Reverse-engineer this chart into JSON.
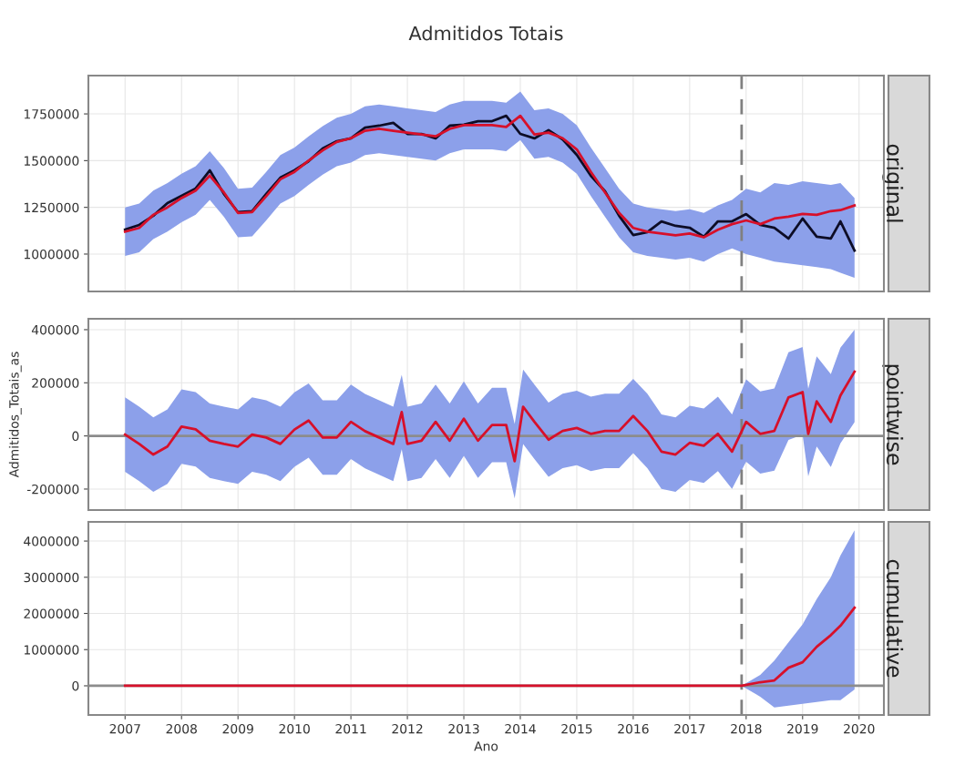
{
  "chart_data": [
    {
      "type": "line",
      "title": "Admitidos Totais",
      "subtitle": "original",
      "xlim": [
        2006.35,
        2020.44
      ],
      "xticks": [
        2007,
        2008,
        2009,
        2010,
        2011,
        2012,
        2013,
        2014,
        2015,
        2016,
        2017,
        2018,
        2019,
        2020
      ],
      "ylim": [
        800000,
        1955000
      ],
      "yticks": [
        1000000,
        1250000,
        1500000,
        1750000
      ],
      "grid": true,
      "tick_labels": "y",
      "line_style": "solid",
      "x": [
        2007.0,
        2007.25,
        2007.5,
        2007.75,
        2008.0,
        2008.25,
        2008.5,
        2008.75,
        2009.0,
        2009.25,
        2009.5,
        2009.75,
        2010.0,
        2010.25,
        2010.5,
        2010.75,
        2011.0,
        2011.25,
        2011.5,
        2011.75,
        2012.0,
        2012.25,
        2012.5,
        2012.75,
        2013.0,
        2013.25,
        2013.5,
        2013.75,
        2014.0,
        2014.25,
        2014.5,
        2014.75,
        2015.0,
        2015.25,
        2015.5,
        2015.75,
        2016.0,
        2016.25,
        2016.5,
        2016.75,
        2017.0,
        2017.25,
        2017.5,
        2017.75,
        2018.0,
        2018.25,
        2018.5,
        2018.75,
        2019.0,
        2019.25,
        2019.5,
        2019.67,
        2019.92
      ],
      "series": [
        {
          "color": "#0d0d26",
          "values": [
            1131000,
            1156000,
            1205000,
            1273000,
            1312000,
            1351000,
            1448000,
            1322000,
            1224000,
            1229000,
            1322000,
            1409000,
            1448000,
            1497000,
            1565000,
            1604000,
            1619000,
            1677000,
            1687000,
            1702000,
            1643000,
            1643000,
            1619000,
            1687000,
            1692000,
            1711000,
            1711000,
            1740000,
            1643000,
            1619000,
            1663000,
            1614000,
            1531000,
            1419000,
            1336000,
            1205000,
            1102000,
            1117000,
            1175000,
            1151000,
            1141000,
            1093000,
            1175000,
            1175000,
            1214000,
            1156000,
            1141000,
            1083000,
            1190000,
            1093000,
            1083000,
            1175000,
            1019000
          ]
        },
        {
          "color": "#d7102a",
          "values": [
            1120000,
            1140000,
            1210000,
            1250000,
            1300000,
            1340000,
            1420000,
            1330000,
            1220000,
            1225000,
            1310000,
            1400000,
            1440000,
            1500000,
            1555000,
            1600000,
            1620000,
            1660000,
            1670000,
            1660000,
            1650000,
            1640000,
            1630000,
            1670000,
            1690000,
            1690000,
            1690000,
            1680000,
            1740000,
            1640000,
            1650000,
            1620000,
            1560000,
            1440000,
            1330000,
            1220000,
            1140000,
            1120000,
            1110000,
            1100000,
            1110000,
            1090000,
            1130000,
            1160000,
            1180000,
            1160000,
            1190000,
            1200000,
            1215000,
            1210000,
            1230000,
            1235000,
            1260000
          ],
          "lower": [
            990000,
            1010000,
            1080000,
            1120000,
            1170000,
            1210000,
            1290000,
            1200000,
            1090000,
            1095000,
            1180000,
            1270000,
            1310000,
            1370000,
            1425000,
            1470000,
            1490000,
            1530000,
            1540000,
            1530000,
            1520000,
            1510000,
            1500000,
            1540000,
            1560000,
            1560000,
            1560000,
            1550000,
            1610000,
            1510000,
            1520000,
            1490000,
            1430000,
            1310000,
            1200000,
            1090000,
            1010000,
            990000,
            980000,
            970000,
            980000,
            960000,
            1000000,
            1030000,
            1000000,
            980000,
            960000,
            950000,
            940000,
            930000,
            920000,
            900000,
            873000
          ],
          "upper": [
            1250000,
            1270000,
            1340000,
            1380000,
            1430000,
            1470000,
            1550000,
            1460000,
            1350000,
            1355000,
            1440000,
            1530000,
            1570000,
            1630000,
            1685000,
            1730000,
            1750000,
            1790000,
            1800000,
            1790000,
            1780000,
            1770000,
            1760000,
            1800000,
            1820000,
            1820000,
            1820000,
            1810000,
            1870000,
            1770000,
            1780000,
            1750000,
            1690000,
            1570000,
            1460000,
            1350000,
            1270000,
            1250000,
            1240000,
            1230000,
            1240000,
            1220000,
            1260000,
            1290000,
            1350000,
            1330000,
            1380000,
            1370000,
            1390000,
            1380000,
            1370000,
            1380000,
            1300000
          ]
        }
      ],
      "ref_lines": [
        {
          "axis": "x",
          "value": 2017.92,
          "color": "#808080",
          "line_style": "dashed"
        }
      ]
    },
    {
      "type": "line",
      "subtitle": "pointwise",
      "ylabel": "Admitidos_Totais_as",
      "xlim": [
        2006.35,
        2020.44
      ],
      "xticks": [
        2007,
        2008,
        2009,
        2010,
        2011,
        2012,
        2013,
        2014,
        2015,
        2016,
        2017,
        2018,
        2019,
        2020
      ],
      "ylim": [
        -279000,
        441000
      ],
      "yticks": [
        {
          "value": -200000,
          "label": "-200000"
        },
        0,
        200000,
        400000
      ],
      "grid": true,
      "tick_labels": "y",
      "line_style": "solid",
      "x": [
        2007.0,
        2007.25,
        2007.5,
        2007.75,
        2008.0,
        2008.25,
        2008.5,
        2008.75,
        2009.0,
        2009.25,
        2009.5,
        2009.75,
        2010.0,
        2010.25,
        2010.5,
        2010.75,
        2011.0,
        2011.25,
        2011.5,
        2011.75,
        2011.9,
        2012.0,
        2012.25,
        2012.5,
        2012.75,
        2013.0,
        2013.25,
        2013.5,
        2013.75,
        2013.9,
        2014.05,
        2014.25,
        2014.5,
        2014.75,
        2015.0,
        2015.25,
        2015.5,
        2015.75,
        2016.0,
        2016.25,
        2016.5,
        2016.75,
        2017.0,
        2017.25,
        2017.5,
        2017.75,
        2018.0,
        2018.25,
        2018.5,
        2018.75,
        2019.0,
        2019.1,
        2019.25,
        2019.5,
        2019.67,
        2019.92
      ],
      "series": [
        {
          "color": "#d7102a",
          "values": [
            5000,
            -30000,
            -70000,
            -40000,
            35000,
            25000,
            -18000,
            -30000,
            -40000,
            5000,
            -6000,
            -30000,
            24000,
            58000,
            -6000,
            -6000,
            53000,
            18000,
            -6000,
            -30000,
            90000,
            -30000,
            -18000,
            53000,
            -18000,
            65000,
            -18000,
            41000,
            41000,
            -95000,
            110000,
            53000,
            -14000,
            19000,
            30000,
            8000,
            19000,
            19000,
            75000,
            19000,
            -59000,
            -70000,
            -26000,
            -37000,
            8000,
            -59000,
            53000,
            8000,
            19000,
            145000,
            165000,
            8000,
            130000,
            53000,
            152000,
            242000
          ],
          "lower": [
            -135000,
            -170000,
            -210000,
            -180000,
            -105000,
            -115000,
            -158000,
            -170000,
            -180000,
            -135000,
            -146000,
            -170000,
            -116000,
            -82000,
            -146000,
            -146000,
            -87000,
            -122000,
            -146000,
            -170000,
            -50000,
            -170000,
            -158000,
            -87000,
            -158000,
            -75000,
            -158000,
            -99000,
            -99000,
            -235000,
            -30000,
            -87000,
            -154000,
            -121000,
            -110000,
            -132000,
            -121000,
            -121000,
            -65000,
            -121000,
            -199000,
            -210000,
            -166000,
            -177000,
            -132000,
            -199000,
            -97000,
            -142000,
            -131000,
            -15000,
            5000,
            -152000,
            -40000,
            -117000,
            -28000,
            52000
          ],
          "upper": [
            145000,
            110000,
            70000,
            100000,
            175000,
            165000,
            122000,
            110000,
            100000,
            145000,
            134000,
            110000,
            164000,
            198000,
            134000,
            134000,
            193000,
            158000,
            134000,
            110000,
            230000,
            110000,
            122000,
            193000,
            122000,
            205000,
            122000,
            181000,
            181000,
            45000,
            250000,
            193000,
            126000,
            159000,
            170000,
            148000,
            159000,
            159000,
            215000,
            159000,
            81000,
            70000,
            114000,
            103000,
            148000,
            81000,
            213000,
            168000,
            179000,
            315000,
            335000,
            178000,
            300000,
            233000,
            332000,
            400000
          ]
        }
      ],
      "ref_lines": [
        {
          "axis": "y",
          "value": 0,
          "color": "#8c8c8c",
          "line_style": "solid"
        },
        {
          "axis": "x",
          "value": 2017.92,
          "color": "#808080",
          "line_style": "dashed"
        }
      ]
    },
    {
      "type": "line",
      "subtitle": "cumulative",
      "xlabel": "Ano",
      "xlim": [
        2006.35,
        2020.44
      ],
      "xticks": [
        2007,
        2008,
        2009,
        2010,
        2011,
        2012,
        2013,
        2014,
        2015,
        2016,
        2017,
        2018,
        2019,
        2020
      ],
      "ylim": [
        -806000,
        4530000
      ],
      "yticks": [
        0,
        1000000,
        2000000,
        3000000,
        4000000
      ],
      "grid": true,
      "line_style": "solid",
      "x": [
        2007.0,
        2017.92,
        2018.25,
        2018.5,
        2018.75,
        2019.0,
        2019.25,
        2019.5,
        2019.67,
        2019.92
      ],
      "series": [
        {
          "color": "#d7102a",
          "values": [
            0,
            0,
            100000,
            150000,
            500000,
            650000,
            1080000,
            1400000,
            1660000,
            2160000
          ],
          "lower": [
            0,
            0,
            -300000,
            -600000,
            -550000,
            -500000,
            -450000,
            -400000,
            -400000,
            -100000
          ],
          "upper": [
            0,
            0,
            300000,
            700000,
            1200000,
            1700000,
            2400000,
            3000000,
            3600000,
            4300000
          ]
        }
      ],
      "ref_lines": [
        {
          "axis": "y",
          "value": 0,
          "color": "#8c8c8c",
          "line_style": "solid"
        },
        {
          "axis": "x",
          "value": 2017.92,
          "color": "#808080",
          "line_style": "dashed"
        }
      ]
    }
  ]
}
